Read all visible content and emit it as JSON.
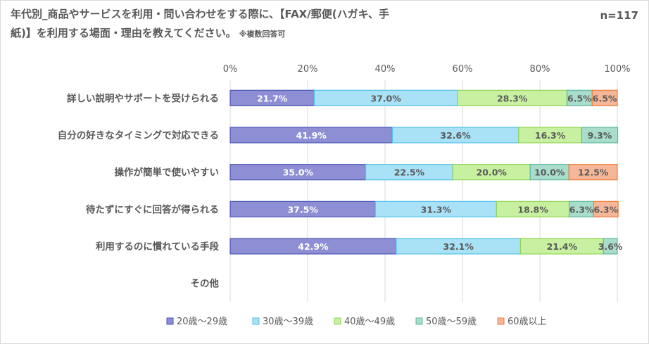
{
  "title": {
    "line1": "年代別_商品やサービスを利用・問い合わせをする際に、【FAX/郵便(ハガキ、手",
    "line2": "紙)】を利用する場面・理由を教えてください。",
    "note": "※複数回答可"
  },
  "n_label": "n=117",
  "colors": {
    "fills": [
      "#8e8ed4",
      "#a9e1f6",
      "#c7f1a0",
      "#a9ddcb",
      "#f6b798"
    ],
    "strokes": [
      "#4a57b5",
      "#52c0ea",
      "#8fd455",
      "#5fb7a0",
      "#ee7b38"
    ],
    "grid": "#d9d9d9",
    "text": "#595959"
  },
  "chart_data": {
    "type": "bar",
    "orientation": "horizontal",
    "stacked": true,
    "xlim": [
      0,
      100
    ],
    "xticks": [
      "0%",
      "20%",
      "40%",
      "60%",
      "80%",
      "100%"
    ],
    "categories": [
      "詳しい説明やサポートを受けられる",
      "自分の好きなタイミングで対応できる",
      "操作が簡単で使いやすい",
      "待たずにすぐに回答が得られる",
      "利用するのに慣れている手段",
      "その他"
    ],
    "series": [
      {
        "name": "20歳～29歳",
        "values": [
          21.7,
          41.9,
          35.0,
          37.5,
          42.9,
          0
        ],
        "labels": [
          "21.7%",
          "41.9%",
          "35.0%",
          "37.5%",
          "42.9%",
          ""
        ]
      },
      {
        "name": "30歳～39歳",
        "values": [
          37.0,
          32.6,
          22.5,
          31.3,
          32.1,
          0
        ],
        "labels": [
          "37.0%",
          "32.6%",
          "22.5%",
          "31.3%",
          "32.1%",
          ""
        ]
      },
      {
        "name": "40歳～49歳",
        "values": [
          28.3,
          16.3,
          20.0,
          18.8,
          21.4,
          0
        ],
        "labels": [
          "28.3%",
          "16.3%",
          "20.0%",
          "18.8%",
          "21.4%",
          ""
        ]
      },
      {
        "name": "50歳～59歳",
        "values": [
          6.5,
          9.3,
          10.0,
          6.3,
          3.6,
          0
        ],
        "labels": [
          "6.5%",
          "9.3%",
          "10.0%",
          "6.3%",
          "3.6%",
          ""
        ]
      },
      {
        "name": "60歳以上",
        "values": [
          6.5,
          0,
          12.5,
          6.3,
          0,
          0
        ],
        "labels": [
          "6.5%",
          "",
          "12.5%",
          "6.3%",
          "",
          ""
        ]
      }
    ],
    "legend_position": "bottom",
    "grid": true
  }
}
